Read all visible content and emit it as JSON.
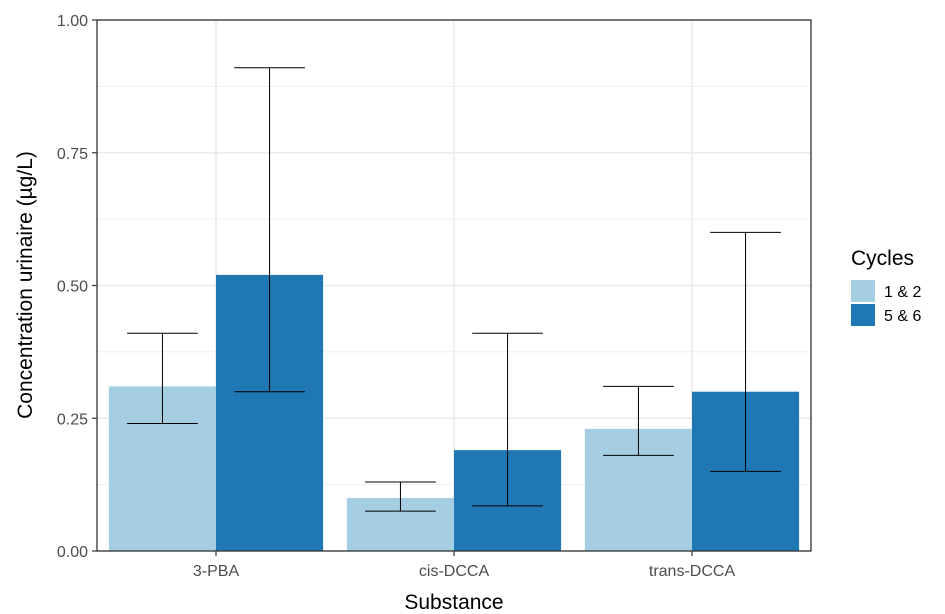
{
  "chart_data": {
    "type": "bar",
    "title": "",
    "xlabel": "Substance",
    "ylabel": "Concentration urinaire (µg/L)",
    "categories": [
      "3-PBA",
      "cis-DCCA",
      "trans-DCCA"
    ],
    "ylim": [
      0,
      1
    ],
    "yticks": [
      "0.00",
      "0.25",
      "0.50",
      "0.75",
      "1.00"
    ],
    "grid": true,
    "legend": {
      "title": "Cycles",
      "position": "right"
    },
    "series": [
      {
        "name": "1 & 2",
        "color": "#a6cee3",
        "values": [
          0.31,
          0.1,
          0.23
        ],
        "error_low": [
          0.24,
          0.075,
          0.18
        ],
        "error_high": [
          0.41,
          0.13,
          0.31
        ]
      },
      {
        "name": "5 & 6",
        "color": "#1f78b4",
        "values": [
          0.52,
          0.19,
          0.3
        ],
        "error_low": [
          0.3,
          0.085,
          0.15
        ],
        "error_high": [
          0.91,
          0.41,
          0.6
        ]
      }
    ]
  }
}
